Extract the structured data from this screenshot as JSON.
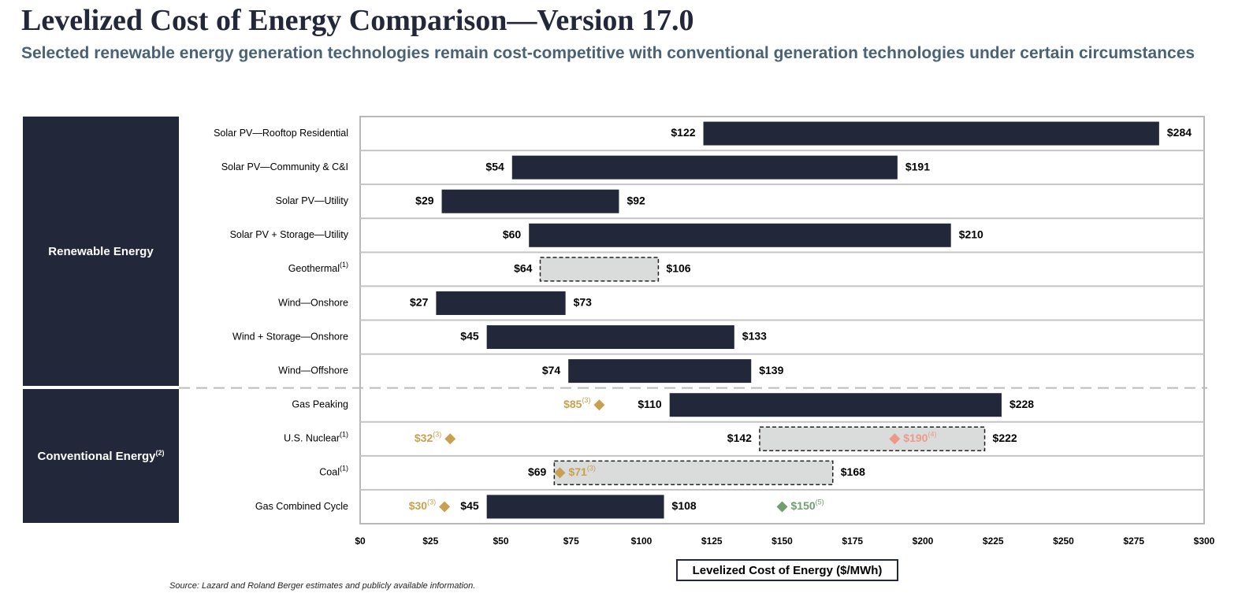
{
  "title": "Levelized Cost of Energy Comparison—Version 17.0",
  "subtitle": "Selected renewable energy generation technologies remain cost-competitive with conventional generation technologies under certain circumstances",
  "source": "Source:    Lazard and Roland Berger estimates and publicly available information.",
  "groups": [
    {
      "label": "Renewable Energy",
      "note": ""
    },
    {
      "label": "Conventional Energy",
      "note": "(2)"
    }
  ],
  "chart_data": {
    "type": "bar",
    "orientation": "horizontal-range",
    "xlabel": "Levelized Cost of Energy ($/MWh)",
    "xlim": [
      0,
      300
    ],
    "xticks": [
      0,
      25,
      50,
      75,
      100,
      125,
      150,
      175,
      200,
      225,
      250,
      275,
      300
    ],
    "tick_prefix": "$",
    "grid": "horizontal row dividers",
    "colors": {
      "bar": "#22273a",
      "dashed_bar": "#d9dcdb",
      "gold": "#c9a050",
      "salmon": "#ec9a86",
      "green": "#6f9e6f"
    },
    "rows": [
      {
        "category": "Solar PV—Rooftop Residential",
        "note": "",
        "group": 0,
        "low": 122,
        "high": 284,
        "style": "solid",
        "markers": []
      },
      {
        "category": "Solar PV—Community & C&I",
        "note": "",
        "group": 0,
        "low": 54,
        "high": 191,
        "style": "solid",
        "markers": []
      },
      {
        "category": "Solar PV—Utility",
        "note": "",
        "group": 0,
        "low": 29,
        "high": 92,
        "style": "solid",
        "markers": []
      },
      {
        "category": "Solar PV + Storage—Utility",
        "note": "",
        "group": 0,
        "low": 60,
        "high": 210,
        "style": "solid",
        "markers": []
      },
      {
        "category": "Geothermal",
        "note": "(1)",
        "group": 0,
        "low": 64,
        "high": 106,
        "style": "dashed",
        "markers": []
      },
      {
        "category": "Wind—Onshore",
        "note": "",
        "group": 0,
        "low": 27,
        "high": 73,
        "style": "solid",
        "markers": []
      },
      {
        "category": "Wind + Storage—Onshore",
        "note": "",
        "group": 0,
        "low": 45,
        "high": 133,
        "style": "solid",
        "markers": []
      },
      {
        "category": "Wind—Offshore",
        "note": "",
        "group": 0,
        "low": 74,
        "high": 139,
        "style": "solid",
        "markers": []
      },
      {
        "category": "Gas Peaking",
        "note": "",
        "group": 1,
        "low": 110,
        "high": 228,
        "style": "solid",
        "markers": [
          {
            "value": 85,
            "label": "$85",
            "note": "(3)",
            "color": "gold"
          }
        ]
      },
      {
        "category": "U.S. Nuclear",
        "note": "(1)",
        "group": 1,
        "low": 142,
        "high": 222,
        "style": "dashed",
        "markers": [
          {
            "value": 32,
            "label": "$32",
            "note": "(3)",
            "color": "gold"
          },
          {
            "value": 190,
            "label": "$190",
            "note": "(4)",
            "color": "salmon"
          }
        ]
      },
      {
        "category": "Coal",
        "note": "(1)",
        "group": 1,
        "low": 69,
        "high": 168,
        "style": "dashed",
        "markers": [
          {
            "value": 71,
            "label": "$71",
            "note": "(3)",
            "color": "gold"
          }
        ]
      },
      {
        "category": "Gas Combined Cycle",
        "note": "",
        "group": 1,
        "low": 45,
        "high": 108,
        "style": "solid",
        "markers": [
          {
            "value": 30,
            "label": "$30",
            "note": "(3)",
            "color": "gold"
          },
          {
            "value": 150,
            "label": "$150",
            "note": "(5)",
            "color": "green"
          }
        ]
      }
    ]
  }
}
